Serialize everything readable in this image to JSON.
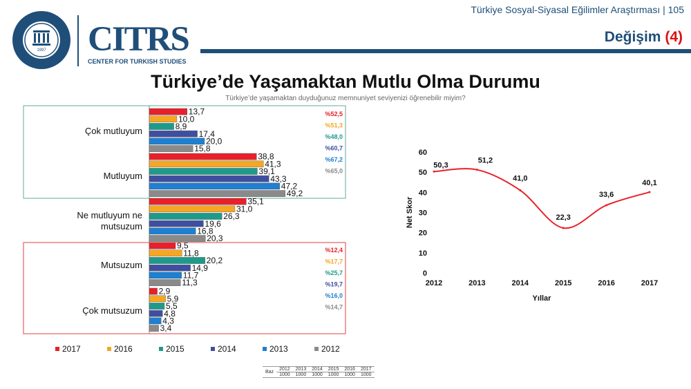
{
  "header": {
    "survey_title": "Türkiye Sosyal-Siyasal Eğilimler Araştırması | 105",
    "section": "Değişim",
    "section_num": "(4)"
  },
  "logo": {
    "seal_text": "KADİR HAS ÜNİVERSİTESİ",
    "seal_year": "1997",
    "name": "CITRS",
    "caption": "CENTER FOR TURKISH STUDIES"
  },
  "title": "Türkiye’de Yaşamaktan Mutlu Olma Durumu",
  "question": "Türkiye’de yaşamaktan duyduğunuz memnuniyet seviyenizi öğrenebilir miyim?",
  "colors": {
    "2017": "#e8202a",
    "2016": "#f5a623",
    "2015": "#1e9a8a",
    "2014": "#3f4fa0",
    "2013": "#1f7fd0",
    "2012": "#8a8a8a",
    "happy_box": "#5fa89c",
    "unhappy_box": "#e04040",
    "line": "#e8202a"
  },
  "chart_data": [
    {
      "type": "bar",
      "orientation": "horizontal",
      "categories": [
        "Çok mutluyum",
        "Mutluyum",
        "Ne mutluyum ne mutsuzum",
        "Mutsuzum",
        "Çok mutsuzum"
      ],
      "category_lines": [
        [
          "Çok mutluyum"
        ],
        [
          "Mutluyum"
        ],
        [
          "Ne mutluyum ne",
          "mutsuzum"
        ],
        [
          "Mutsuzum"
        ],
        [
          "Çok mutsuzum"
        ]
      ],
      "series": [
        {
          "name": "2017",
          "values": [
            13.7,
            38.8,
            35.1,
            9.5,
            2.9
          ]
        },
        {
          "name": "2016",
          "values": [
            10.0,
            41.3,
            31.0,
            11.8,
            5.9
          ]
        },
        {
          "name": "2015",
          "values": [
            8.9,
            39.1,
            26.3,
            20.2,
            5.5
          ]
        },
        {
          "name": "2014",
          "values": [
            17.4,
            43.3,
            19.6,
            14.9,
            4.8
          ]
        },
        {
          "name": "2013",
          "values": [
            20.0,
            47.2,
            16.8,
            11.7,
            4.3
          ]
        },
        {
          "name": "2012",
          "values": [
            15.8,
            49.2,
            20.3,
            11.3,
            3.4
          ]
        }
      ],
      "value_labels": {
        "2017": [
          "13,7",
          "38,8",
          "35,1",
          "9,5",
          "2,9"
        ],
        "2016": [
          "10,0",
          "41,3",
          "31,0",
          "11,8",
          "5,9"
        ],
        "2015": [
          "8,9",
          "39,1",
          "26,3",
          "20,2",
          "5,5"
        ],
        "2014": [
          "17,4",
          "43,3",
          "19,6",
          "14,9",
          "4,8"
        ],
        "2013": [
          "20,0",
          "47,2",
          "16,8",
          "11,7",
          "4,3"
        ],
        "2012": [
          "15,8",
          "49,2",
          "20,3",
          "11,3",
          "3,4"
        ]
      },
      "group_totals": {
        "happy": {
          "2017": "%52,5",
          "2016": "%51,3",
          "2015": "%48,0",
          "2014": "%60,7",
          "2013": "%67,2",
          "2012": "%65,0"
        },
        "unhappy": {
          "2017": "%12,4",
          "2016": "%17,7",
          "2015": "%25,7",
          "2014": "%19,7",
          "2013": "%16,0",
          "2012": "%14,7"
        }
      },
      "legend": [
        "2017",
        "2016",
        "2015",
        "2014",
        "2013",
        "2012"
      ],
      "legend_position": "bottom",
      "xlim": [
        0,
        52
      ]
    },
    {
      "type": "line",
      "x": [
        2012,
        2013,
        2014,
        2015,
        2016,
        2017
      ],
      "y": [
        50.3,
        51.2,
        41.0,
        22.3,
        33.6,
        40.1
      ],
      "value_labels": [
        "50,3",
        "51,2",
        "41,0",
        "22,3",
        "33,6",
        "40,1"
      ],
      "xlabel": "Yıllar",
      "ylabel": "Net Skor",
      "ylim": [
        0,
        60
      ],
      "yticks": [
        0,
        10,
        20,
        30,
        40,
        50,
        60
      ]
    }
  ],
  "baz": {
    "label": "Baz",
    "years": [
      "2012",
      "2013",
      "2014",
      "2015",
      "2016",
      "2017"
    ],
    "counts": [
      "1000",
      "1000",
      "1000",
      "1000",
      "1000",
      "1000"
    ]
  }
}
